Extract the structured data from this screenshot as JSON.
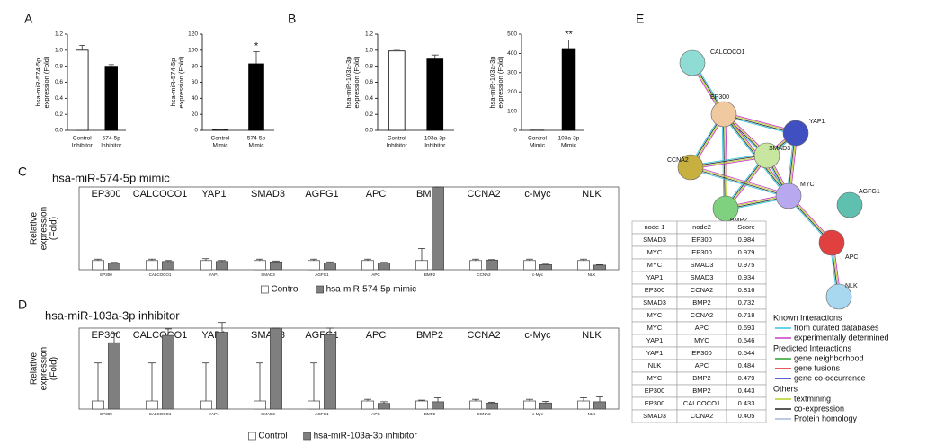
{
  "panel_labels": [
    "A",
    "B",
    "C",
    "D",
    "E"
  ],
  "chart_data": [
    {
      "type": "bar",
      "ylabel": [
        "hsa-miR-574-5p",
        "expression (Fold)"
      ],
      "categories": [
        [
          "Control",
          "Inhibitor"
        ],
        [
          "574-5p",
          "Inhibitor"
        ]
      ],
      "values": [
        1.0,
        0.8
      ],
      "errors": [
        0.06,
        0.02
      ],
      "colors": [
        "#ffffff",
        "#000000"
      ],
      "ylim": [
        0,
        1.2
      ],
      "yticks": [
        {
          "value": 0,
          "label": "0.0"
        },
        0.2,
        0.4,
        0.6,
        0.8,
        {
          "value": 1,
          "label": "1.0"
        },
        1.2
      ]
    },
    {
      "type": "bar",
      "ylabel": [
        "hsa-miR-574-5p",
        "expression (Fold)"
      ],
      "categories": [
        [
          "Control",
          "Mimic"
        ],
        [
          "574-5p",
          "Mimic"
        ]
      ],
      "values": [
        1,
        83
      ],
      "errors": [
        0,
        15
      ],
      "colors": [
        "#ffffff",
        "#000000"
      ],
      "annotations": [
        null,
        "*"
      ],
      "ylim": [
        0,
        120
      ],
      "yticks": [
        0,
        20,
        40,
        60,
        80,
        100,
        120
      ]
    },
    {
      "type": "bar",
      "ylabel": [
        "hsa-miR-103a-3p",
        "expression (Fold)"
      ],
      "categories": [
        [
          "Control",
          "Inhibitor"
        ],
        [
          "103a-3p",
          "Inhibitor"
        ]
      ],
      "values": [
        0.99,
        0.89
      ],
      "errors": [
        0.02,
        0.05
      ],
      "colors": [
        "#ffffff",
        "#000000"
      ],
      "ylim": [
        0,
        1.2
      ],
      "yticks": [
        {
          "value": 0,
          "label": "0.0"
        },
        0.2,
        0.4,
        0.6,
        0.8,
        {
          "value": 1,
          "label": "1.0"
        },
        1.2
      ]
    },
    {
      "type": "bar",
      "ylabel": [
        "hsa-miR-103a-3p",
        "expression (Fold)"
      ],
      "categories": [
        [
          "Control",
          "Mimic"
        ],
        [
          "103a-3p",
          "Mimic"
        ]
      ],
      "values": [
        1,
        425
      ],
      "errors": [
        0,
        45
      ],
      "colors": [
        "#ffffff",
        "#000000"
      ],
      "annotations": [
        null,
        "**"
      ],
      "ylim": [
        0,
        500
      ],
      "yticks": [
        0,
        100,
        200,
        300,
        400,
        500
      ]
    },
    {
      "type": "grouped_bar",
      "title": "hsa-miR-574-5p mimic",
      "ylabel": [
        "Relative",
        "expression",
        "(Fold)"
      ],
      "categories": [
        "EP300",
        "CALCOCO1",
        "YAP1",
        "SMAD3",
        "AGFG1",
        "APC",
        "BMP2",
        "CCNA2",
        "c-Myc",
        "NLK"
      ],
      "series": [
        {
          "name": "Control",
          "color": "#ffffff",
          "values": [
            1,
            1,
            1,
            1,
            1,
            1,
            1,
            1,
            1,
            1
          ],
          "errors": [
            0.15,
            0.15,
            0.2,
            0.15,
            0.15,
            0.15,
            1.3,
            0.15,
            0.15,
            0.15
          ]
        },
        {
          "name": "hsa-miR-574-5p mimic",
          "color": "#7f7f7f",
          "values": [
            0.7,
            0.9,
            0.9,
            0.85,
            0.75,
            0.75,
            9,
            1.05,
            0.55,
            0.5
          ],
          "errors": [
            0.1,
            0.1,
            0.1,
            0.1,
            0.1,
            0.05,
            0,
            0.05,
            0.05,
            0.05
          ]
        }
      ],
      "ylim": [
        0,
        9
      ]
    },
    {
      "type": "grouped_bar",
      "title": "hsa-miR-103a-3p inhibitor",
      "ylabel": [
        "Relative",
        "expression",
        "(Fold)"
      ],
      "categories": [
        "EP300",
        "CALCOCO1",
        "YAP1",
        "SMAD3",
        "AGFG1",
        "APC",
        "BMP2",
        "CCNA2",
        "c-Myc",
        "NLK"
      ],
      "series": [
        {
          "name": "Control",
          "color": "#ffffff",
          "values": [
            1,
            1,
            1,
            1,
            1,
            1,
            1,
            1,
            1,
            1
          ],
          "errors": [
            4.7,
            4.7,
            4.7,
            4.7,
            4.7,
            0.2,
            0.1,
            0.2,
            0.2,
            0.4
          ]
        },
        {
          "name": "hsa-miR-103a-3p inhibitor",
          "color": "#7f7f7f",
          "values": [
            8.2,
            9.1,
            9.5,
            10,
            9.2,
            0.7,
            0.9,
            0.75,
            0.75,
            0.9
          ],
          "errors": [
            1.2,
            0.8,
            1.2,
            0,
            0.8,
            0.2,
            0.5,
            0.1,
            0.2,
            0.6
          ]
        }
      ],
      "ylim": [
        0,
        10
      ]
    }
  ],
  "table": {
    "header": [
      "node 1",
      "node2",
      "Score"
    ],
    "rows": [
      [
        "SMAD3",
        "EP300",
        0.984
      ],
      [
        "MYC",
        "EP300",
        0.979
      ],
      [
        "MYC",
        "SMAD3",
        0.975
      ],
      [
        "YAP1",
        "SMAD3",
        0.934
      ],
      [
        "EP300",
        "CCNA2",
        0.816
      ],
      [
        "SMAD3",
        "BMP2",
        0.732
      ],
      [
        "MYC",
        "CCNA2",
        0.718
      ],
      [
        "MYC",
        "APC",
        0.693
      ],
      [
        "YAP1",
        "MYC",
        0.546
      ],
      [
        "YAP1",
        "EP300",
        0.544
      ],
      [
        "NLK",
        "APC",
        0.484
      ],
      [
        "MYC",
        "BMP2",
        0.479
      ],
      [
        "EP300",
        "BMP2",
        0.443
      ],
      [
        "EP300",
        "CALCOCO1",
        0.433
      ],
      [
        "SMAD3",
        "CCNA2",
        0.405
      ]
    ]
  },
  "network": {
    "nodes": [
      "CALCOCO1",
      "EP300",
      "YAP1",
      "SMAD3",
      "CCNA2",
      "MYC",
      "BMP2",
      "AGFG1",
      "APC",
      "NLK"
    ],
    "legend": [
      {
        "title": "Known Interactions",
        "items": [
          {
            "label": "from curated databases",
            "color": "#33c5e0"
          },
          {
            "label": "experimentally determined",
            "color": "#c83cc8"
          }
        ]
      },
      {
        "title": "Predicted Interactions",
        "items": [
          {
            "label": "gene neighborhood",
            "color": "#2ca02c"
          },
          {
            "label": "gene fusions",
            "color": "#e02020"
          },
          {
            "label": "gene co-occurrence",
            "color": "#2030c0"
          }
        ]
      },
      {
        "title": "Others",
        "items": [
          {
            "label": "textmining",
            "color": "#b8d020"
          },
          {
            "label": "co-expression",
            "color": "#222222"
          },
          {
            "label": "Protein homology",
            "color": "#a8b8d8"
          }
        ]
      }
    ]
  }
}
